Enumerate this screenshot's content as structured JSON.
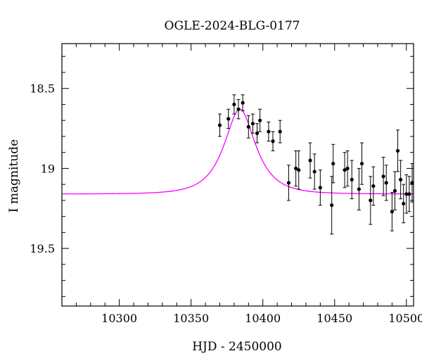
{
  "chart_data": {
    "type": "scatter",
    "title": "OGLE-2024-BLG-0177",
    "xlabel": "HJD - 2450000",
    "ylabel": "I magnitude",
    "xlim": [
      10260,
      10505
    ],
    "ylim": [
      19.86,
      18.22
    ],
    "y_inverted": true,
    "grid": false,
    "x_ticks": [
      {
        "value": 10300,
        "label": "10300"
      },
      {
        "value": 10350,
        "label": "10350"
      },
      {
        "value": 10400,
        "label": "10400"
      },
      {
        "value": 10450,
        "label": "10450"
      },
      {
        "value": 10500,
        "label": "10500"
      }
    ],
    "y_ticks": [
      {
        "value": 18.5,
        "label": "18.5"
      },
      {
        "value": 19.0,
        "label": "19"
      },
      {
        "value": 19.5,
        "label": "19.5"
      }
    ],
    "x_minor_step": 10,
    "y_minor_step": 0.1,
    "point_color": "#000000",
    "model_color": "#ff00ff",
    "model": {
      "baseline": 19.16,
      "peak_mag": 18.63,
      "t0": 10384,
      "width": 18,
      "x_start": 10260,
      "x_end": 10505
    },
    "points": [
      {
        "x": 10370,
        "y": 18.73,
        "err": 0.07
      },
      {
        "x": 10376,
        "y": 18.69,
        "err": 0.06
      },
      {
        "x": 10380,
        "y": 18.6,
        "err": 0.06
      },
      {
        "x": 10383,
        "y": 18.63,
        "err": 0.06
      },
      {
        "x": 10386,
        "y": 18.59,
        "err": 0.05
      },
      {
        "x": 10390,
        "y": 18.74,
        "err": 0.07
      },
      {
        "x": 10393,
        "y": 18.72,
        "err": 0.06
      },
      {
        "x": 10396,
        "y": 18.78,
        "err": 0.06
      },
      {
        "x": 10398,
        "y": 18.7,
        "err": 0.07
      },
      {
        "x": 10404,
        "y": 18.77,
        "err": 0.06
      },
      {
        "x": 10407,
        "y": 18.83,
        "err": 0.06
      },
      {
        "x": 10412,
        "y": 18.77,
        "err": 0.07
      },
      {
        "x": 10418,
        "y": 19.09,
        "err": 0.11
      },
      {
        "x": 10423,
        "y": 19.0,
        "err": 0.11
      },
      {
        "x": 10425,
        "y": 19.01,
        "err": 0.12
      },
      {
        "x": 10433,
        "y": 18.95,
        "err": 0.11
      },
      {
        "x": 10436,
        "y": 19.02,
        "err": 0.11
      },
      {
        "x": 10440,
        "y": 19.12,
        "err": 0.11
      },
      {
        "x": 10448,
        "y": 19.23,
        "err": 0.18
      },
      {
        "x": 10449,
        "y": 18.97,
        "err": 0.12
      },
      {
        "x": 10457,
        "y": 19.01,
        "err": 0.11
      },
      {
        "x": 10459,
        "y": 19.0,
        "err": 0.11
      },
      {
        "x": 10462,
        "y": 19.07,
        "err": 0.12
      },
      {
        "x": 10467,
        "y": 19.13,
        "err": 0.13
      },
      {
        "x": 10469,
        "y": 18.97,
        "err": 0.13
      },
      {
        "x": 10475,
        "y": 19.2,
        "err": 0.15
      },
      {
        "x": 10477,
        "y": 19.11,
        "err": 0.12
      },
      {
        "x": 10484,
        "y": 19.05,
        "err": 0.12
      },
      {
        "x": 10486,
        "y": 19.09,
        "err": 0.11
      },
      {
        "x": 10490,
        "y": 19.27,
        "err": 0.12
      },
      {
        "x": 10492,
        "y": 19.14,
        "err": 0.12
      },
      {
        "x": 10494,
        "y": 18.89,
        "err": 0.13
      },
      {
        "x": 10496,
        "y": 19.07,
        "err": 0.12
      },
      {
        "x": 10498,
        "y": 19.22,
        "err": 0.12
      },
      {
        "x": 10500,
        "y": 19.16,
        "err": 0.12
      },
      {
        "x": 10502,
        "y": 19.16,
        "err": 0.11
      },
      {
        "x": 10504,
        "y": 19.09,
        "err": 0.12
      }
    ]
  }
}
